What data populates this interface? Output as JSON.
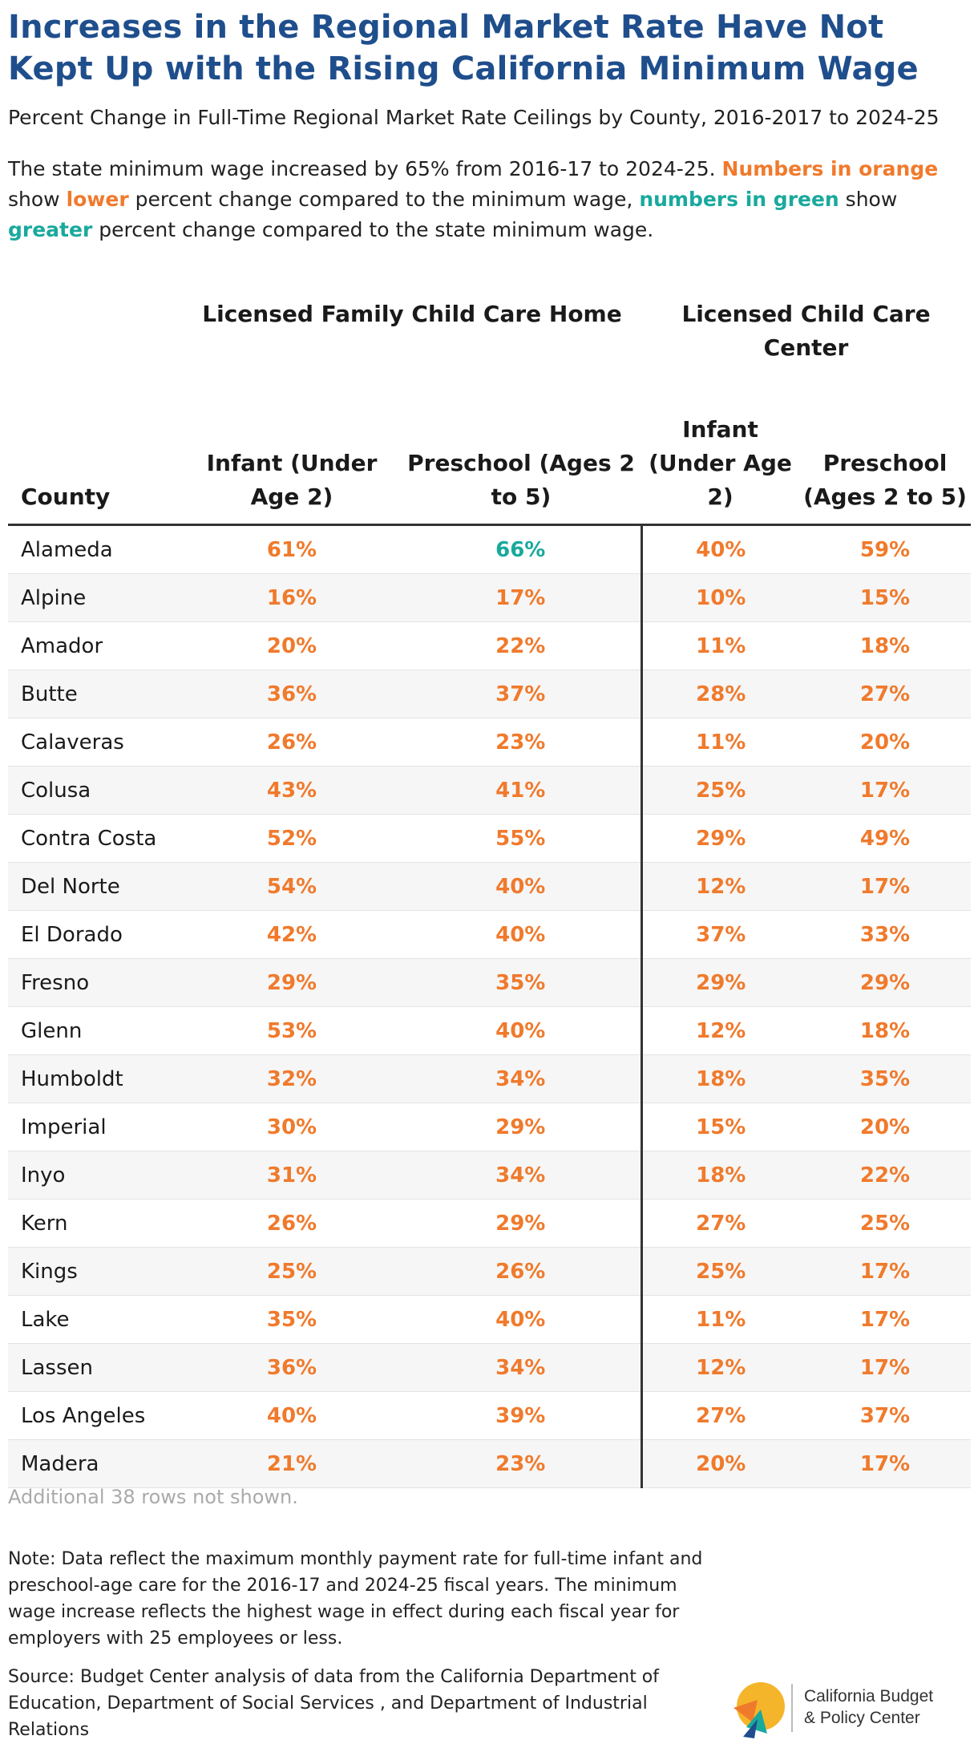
{
  "title": "Increases in the Regional Market Rate Have Not Kept Up with the Rising California Minimum Wage",
  "subtitle": "Percent Change in Full-Time Regional Market Rate Ceilings by County, 2016-2017 to 2024-25",
  "description": {
    "part1": "The state minimum wage increased by 65% from 2016-17 to 2024-25. ",
    "numbers_orange": "Numbers in orange",
    "part2": " show ",
    "lower": "lower",
    "part3": " percent change compared to the minimum wage, ",
    "numbers_green": "numbers in green",
    "part4": " show ",
    "greater": "greater",
    "part5": " percent change compared to the state minimum wage."
  },
  "colors": {
    "lower": "#f07a2c",
    "greater": "#19a99d",
    "title": "#1f4e8c"
  },
  "chart_data": {
    "type": "table",
    "column_groups": [
      "Licensed Family Child Care Home",
      "Licensed Child Care Center"
    ],
    "columns": [
      "County",
      "Infant (Under Age 2)",
      "Preschool (Ages 2 to 5)",
      "Infant (Under Age 2)",
      "Preschool (Ages 2 to 5)"
    ],
    "minimum_wage_change": "65%",
    "rows": [
      {
        "county": "Alameda",
        "values": [
          "61%",
          "66%",
          "40%",
          "59%"
        ]
      },
      {
        "county": "Alpine",
        "values": [
          "16%",
          "17%",
          "10%",
          "15%"
        ]
      },
      {
        "county": "Amador",
        "values": [
          "20%",
          "22%",
          "11%",
          "18%"
        ]
      },
      {
        "county": "Butte",
        "values": [
          "36%",
          "37%",
          "28%",
          "27%"
        ]
      },
      {
        "county": "Calaveras",
        "values": [
          "26%",
          "23%",
          "11%",
          "20%"
        ]
      },
      {
        "county": "Colusa",
        "values": [
          "43%",
          "41%",
          "25%",
          "17%"
        ]
      },
      {
        "county": "Contra Costa",
        "values": [
          "52%",
          "55%",
          "29%",
          "49%"
        ]
      },
      {
        "county": "Del Norte",
        "values": [
          "54%",
          "40%",
          "12%",
          "17%"
        ]
      },
      {
        "county": "El Dorado",
        "values": [
          "42%",
          "40%",
          "37%",
          "33%"
        ]
      },
      {
        "county": "Fresno",
        "values": [
          "29%",
          "35%",
          "29%",
          "29%"
        ]
      },
      {
        "county": "Glenn",
        "values": [
          "53%",
          "40%",
          "12%",
          "18%"
        ]
      },
      {
        "county": "Humboldt",
        "values": [
          "32%",
          "34%",
          "18%",
          "35%"
        ]
      },
      {
        "county": "Imperial",
        "values": [
          "30%",
          "29%",
          "15%",
          "20%"
        ]
      },
      {
        "county": "Inyo",
        "values": [
          "31%",
          "34%",
          "18%",
          "22%"
        ]
      },
      {
        "county": "Kern",
        "values": [
          "26%",
          "29%",
          "27%",
          "25%"
        ]
      },
      {
        "county": "Kings",
        "values": [
          "25%",
          "26%",
          "25%",
          "17%"
        ]
      },
      {
        "county": "Lake",
        "values": [
          "35%",
          "40%",
          "11%",
          "17%"
        ]
      },
      {
        "county": "Lassen",
        "values": [
          "36%",
          "34%",
          "12%",
          "17%"
        ]
      },
      {
        "county": "Los Angeles",
        "values": [
          "40%",
          "39%",
          "27%",
          "37%"
        ]
      },
      {
        "county": "Madera",
        "values": [
          "21%",
          "23%",
          "20%",
          "17%"
        ]
      }
    ]
  },
  "more_rows": "Additional 38 rows not shown.",
  "note": "Note: Data reflect the maximum monthly payment rate for full-time infant and preschool-age care for the 2016-17 and 2024-25 fiscal years. The minimum wage increase reflects the highest wage in effect during each fiscal year for employers with 25 employees or less.",
  "source": "Source: Budget Center analysis of data from the California Department of Education, Department of Social Services , and Department of Industrial Relations",
  "logo": {
    "line1": "California Budget",
    "line2": "& Policy Center",
    "icon": "budget-center-logo-icon"
  }
}
